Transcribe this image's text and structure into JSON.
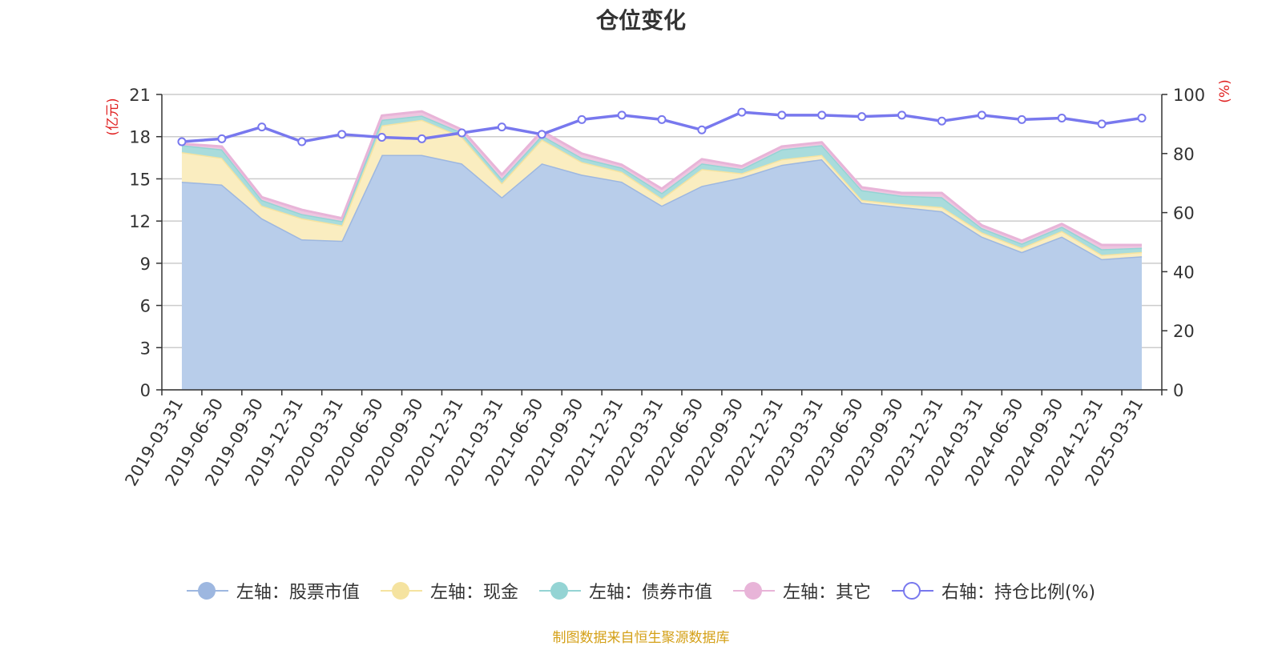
{
  "chart_data": {
    "type": "area",
    "title": "仓位变化",
    "categories": [
      "2019-03-31",
      "2019-06-30",
      "2019-09-30",
      "2019-12-31",
      "2020-03-31",
      "2020-06-30",
      "2020-09-30",
      "2020-12-31",
      "2021-03-31",
      "2021-06-30",
      "2021-09-30",
      "2021-12-31",
      "2022-03-31",
      "2022-06-30",
      "2022-09-30",
      "2022-12-31",
      "2023-03-31",
      "2023-06-30",
      "2023-09-30",
      "2023-12-31",
      "2024-03-31",
      "2024-06-30",
      "2024-09-30",
      "2024-12-31",
      "2025-03-31"
    ],
    "left_axis": {
      "label": "(亿元)",
      "ylim": [
        0,
        21
      ],
      "ticks": [
        0,
        3,
        6,
        9,
        12,
        15,
        18,
        21
      ]
    },
    "right_axis": {
      "label": "(%)",
      "ylim": [
        0,
        100
      ],
      "ticks": [
        0,
        20,
        40,
        60,
        80,
        100
      ]
    },
    "series": [
      {
        "name": "左轴：股票市值",
        "axis": "left",
        "stacked": true,
        "color": "#9db7e0",
        "fill": "#b8cdea",
        "values": [
          14.8,
          14.6,
          12.2,
          10.7,
          10.6,
          16.7,
          16.7,
          16.1,
          13.7,
          16.1,
          15.3,
          14.8,
          13.1,
          14.5,
          15.1,
          16.0,
          16.4,
          13.3,
          13.0,
          12.7,
          10.9,
          9.8,
          10.9,
          9.3,
          9.5
        ]
      },
      {
        "name": "左轴：现金",
        "axis": "left",
        "stacked": true,
        "color": "#f5e3a0",
        "fill": "#faedc0",
        "values": [
          2.1,
          1.9,
          0.9,
          1.5,
          1.1,
          2.1,
          2.5,
          1.9,
          1.0,
          1.7,
          0.9,
          0.7,
          0.5,
          1.2,
          0.3,
          0.4,
          0.3,
          0.2,
          0.2,
          0.3,
          0.3,
          0.3,
          0.4,
          0.3,
          0.3
        ]
      },
      {
        "name": "左轴：债券市值",
        "axis": "left",
        "stacked": true,
        "color": "#94d4d4",
        "fill": "#a9dcdc",
        "values": [
          0.5,
          0.6,
          0.4,
          0.3,
          0.3,
          0.4,
          0.3,
          0.3,
          0.3,
          0.3,
          0.3,
          0.3,
          0.4,
          0.4,
          0.3,
          0.7,
          0.7,
          0.7,
          0.6,
          0.7,
          0.3,
          0.3,
          0.3,
          0.4,
          0.3
        ]
      },
      {
        "name": "左轴：其它",
        "axis": "left",
        "stacked": true,
        "color": "#e8b4d8",
        "fill": "#eec6e0",
        "values": [
          0.1,
          0.2,
          0.2,
          0.3,
          0.2,
          0.3,
          0.3,
          0.2,
          0.3,
          0.3,
          0.3,
          0.2,
          0.3,
          0.3,
          0.2,
          0.2,
          0.2,
          0.2,
          0.2,
          0.3,
          0.2,
          0.2,
          0.2,
          0.3,
          0.2
        ]
      },
      {
        "name": "右轴：持仓比例(%)",
        "axis": "right",
        "stacked": false,
        "color": "#7878ee",
        "fill": "#ffffff",
        "values": [
          84,
          85,
          89,
          84,
          86.5,
          85.5,
          85,
          87,
          89,
          86.5,
          91.5,
          93,
          91.5,
          88,
          94,
          93,
          93,
          92.5,
          93,
          91,
          93,
          91.5,
          92,
          90,
          92
        ]
      }
    ]
  },
  "source_note": "制图数据来自恒生聚源数据库"
}
